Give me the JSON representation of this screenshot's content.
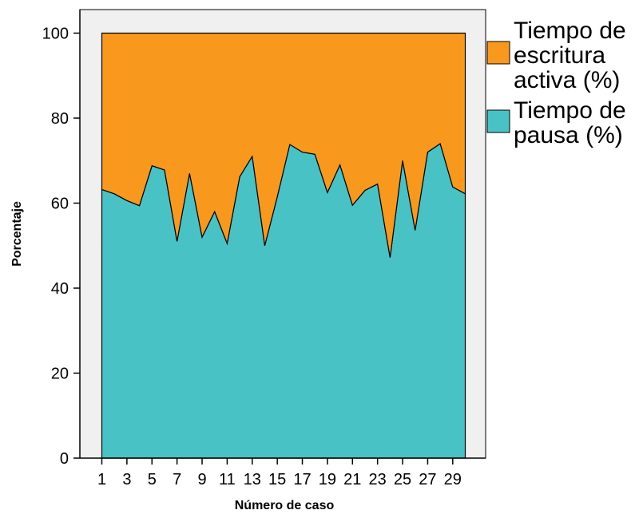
{
  "chart_data": {
    "type": "area",
    "stacked": true,
    "xlabel": "Número de caso",
    "ylabel": "Porcentaje",
    "xlim": [
      1,
      30
    ],
    "ylim": [
      0,
      100
    ],
    "x_ticks": [
      1,
      3,
      5,
      7,
      9,
      11,
      13,
      15,
      17,
      19,
      21,
      23,
      25,
      27,
      29
    ],
    "y_ticks": [
      0,
      20,
      40,
      60,
      80,
      100
    ],
    "grid": false,
    "legend": "right",
    "x": [
      1,
      2,
      3,
      4,
      5,
      6,
      7,
      8,
      9,
      10,
      11,
      12,
      13,
      14,
      15,
      16,
      17,
      18,
      19,
      20,
      21,
      22,
      23,
      24,
      25,
      26,
      27,
      28,
      29,
      30
    ],
    "series": [
      {
        "name": "Tiempo de pausa (%)",
        "legend_lines": [
          "Tiempo de",
          "pausa (%)"
        ],
        "color": "#48C2C5",
        "values": [
          63.2,
          62.2,
          60.6,
          59.4,
          68.8,
          67.8,
          51.0,
          67.0,
          52.0,
          58.0,
          50.5,
          66.2,
          71.0,
          50.0,
          61.5,
          73.8,
          72.0,
          71.5,
          62.5,
          69.0,
          59.5,
          63.0,
          64.5,
          47.2,
          70.0,
          53.6,
          72.0,
          74.0,
          63.8,
          62.2
        ]
      },
      {
        "name": "Tiempo de escritura activa (%)",
        "legend_lines": [
          "Tiempo de",
          "escritura",
          "activa (%)"
        ],
        "color": "#F8981D",
        "values": [
          36.8,
          37.8,
          39.4,
          40.6,
          31.2,
          32.2,
          49.0,
          33.0,
          48.0,
          42.0,
          49.5,
          33.8,
          29.0,
          50.0,
          38.5,
          26.2,
          28.0,
          28.5,
          37.5,
          31.0,
          40.5,
          37.0,
          35.5,
          52.8,
          30.0,
          46.4,
          28.0,
          26.0,
          36.2,
          37.8
        ]
      }
    ],
    "colors": {
      "frame_background": "#F0F0F0",
      "axis": "#000000"
    }
  }
}
